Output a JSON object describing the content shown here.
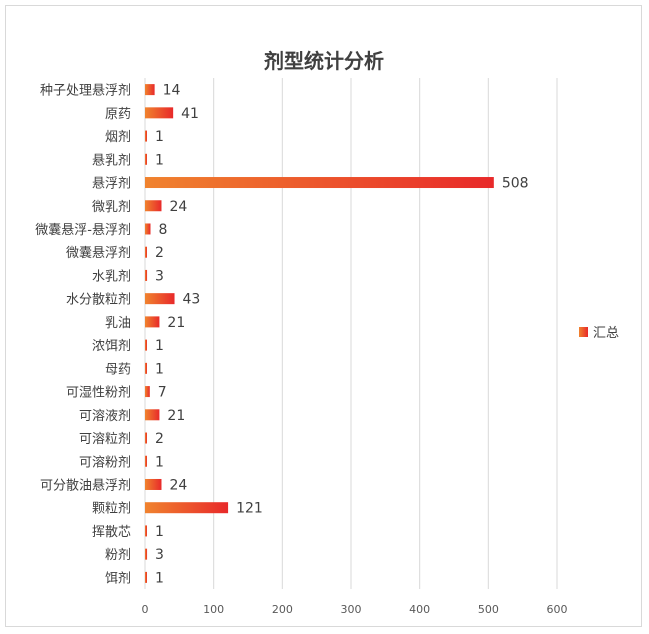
{
  "chart_data": {
    "type": "bar",
    "orientation": "horizontal",
    "title": "剂型统计分析",
    "categories": [
      "种子处理悬浮剂",
      "原药",
      "烟剂",
      "悬乳剂",
      "悬浮剂",
      "微乳剂",
      "微囊悬浮-悬浮剂",
      "微囊悬浮剂",
      "水乳剂",
      "水分散粒剂",
      "乳油",
      "浓饵剂",
      "母药",
      "可湿性粉剂",
      "可溶液剂",
      "可溶粒剂",
      "可溶粉剂",
      "可分散油悬浮剂",
      "颗粒剂",
      "挥散芯",
      "粉剂",
      "饵剂"
    ],
    "series": [
      {
        "name": "汇总",
        "values": [
          14,
          41,
          1,
          1,
          508,
          24,
          8,
          2,
          3,
          43,
          21,
          1,
          1,
          7,
          21,
          2,
          1,
          24,
          121,
          1,
          3,
          1
        ]
      }
    ],
    "xlim": [
      0,
      600
    ],
    "xticks": [
      0,
      100,
      200,
      300,
      400,
      500,
      600
    ],
    "grid": true,
    "legend_position": "right",
    "colors": {
      "bar_start": "#f0832e",
      "bar_end": "#e8292a",
      "grid": "#d9d9d9",
      "text": "#404040"
    }
  }
}
